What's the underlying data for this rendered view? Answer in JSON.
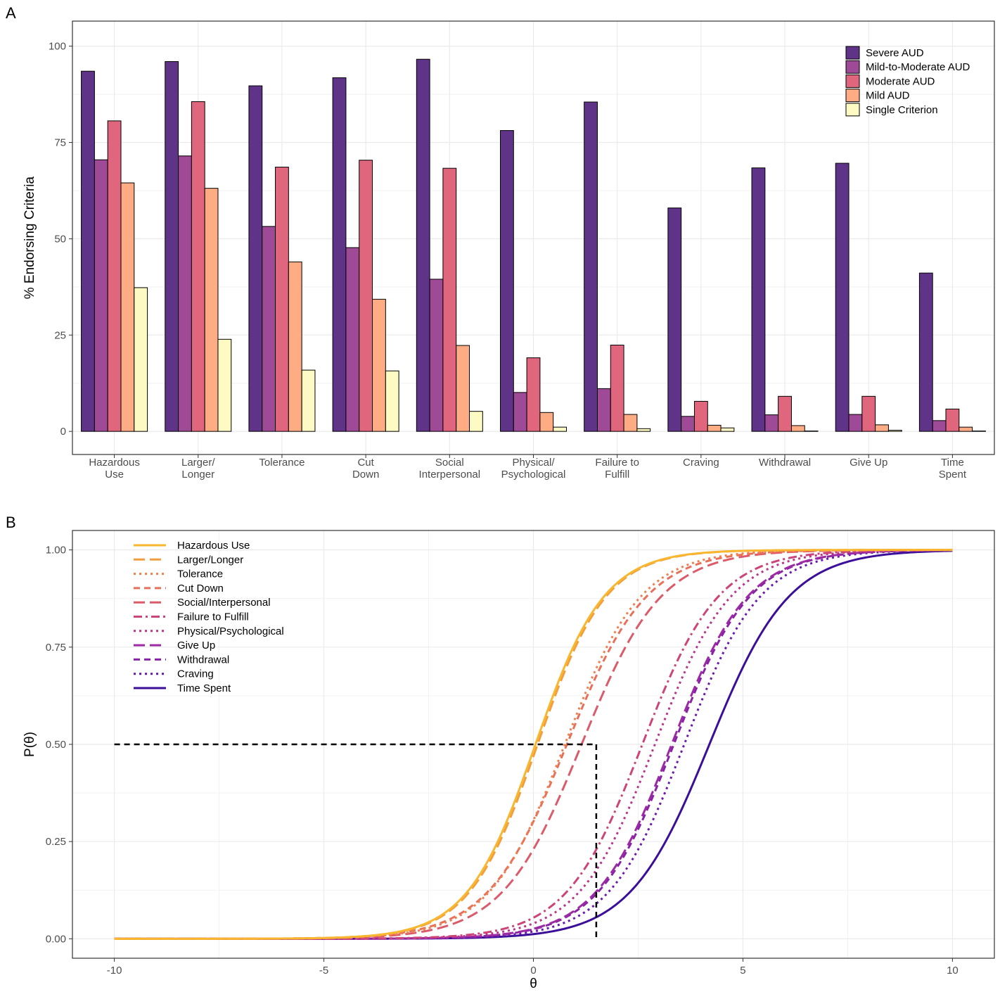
{
  "panels": {
    "a_letter": "A",
    "b_letter": "B"
  },
  "chart_data": [
    {
      "type": "bar",
      "panel": "A",
      "ylabel": "% Endorsing Criteria",
      "xlabel": "",
      "ylim": [
        0,
        100
      ],
      "yticks": [
        "0",
        "25",
        "50",
        "75",
        "100"
      ],
      "grid": true,
      "legend_position": "top-right",
      "categories": [
        [
          "Hazardous",
          "Use"
        ],
        [
          "Larger/",
          "Longer"
        ],
        [
          "Tolerance"
        ],
        [
          "Cut",
          "Down"
        ],
        [
          "Social",
          "Interpersonal"
        ],
        [
          "Physical/",
          "Psychological"
        ],
        [
          "Failure to",
          "Fulfill"
        ],
        [
          "Craving"
        ],
        [
          "Withdrawal"
        ],
        [
          "Give Up"
        ],
        [
          "Time",
          "Spent"
        ]
      ],
      "series": [
        {
          "name": "Severe AUD",
          "color": "#5f3488",
          "values": [
            93.5,
            96,
            89.7,
            91.8,
            96.6,
            78.1,
            85.5,
            58,
            68.4,
            69.6,
            41.1
          ]
        },
        {
          "name": "Mild-to-Moderate AUD",
          "color": "#9e4a96",
          "values": [
            70.5,
            71.5,
            53.2,
            47.7,
            39.5,
            10.1,
            11.1,
            3.9,
            4.3,
            4.4,
            2.8
          ]
        },
        {
          "name": "Moderate AUD",
          "color": "#e0667e",
          "values": [
            80.6,
            85.6,
            68.6,
            70.4,
            68.3,
            19.1,
            22.4,
            7.8,
            9.1,
            9.1,
            5.8
          ]
        },
        {
          "name": "Mild AUD",
          "color": "#fdac84",
          "values": [
            64.5,
            63.1,
            44,
            34.3,
            22.3,
            4.9,
            4.4,
            1.6,
            1.5,
            1.7,
            1.1
          ]
        },
        {
          "name": "Single Criterion",
          "color": "#fdfbc3",
          "values": [
            37.3,
            23.9,
            15.9,
            15.7,
            5.2,
            1.1,
            0.7,
            0.9,
            0.1,
            0.3,
            0.1
          ]
        }
      ]
    },
    {
      "type": "line",
      "panel": "B",
      "xlabel": "θ",
      "ylabel": "P(θ)",
      "xlim": [
        -10,
        10
      ],
      "ylim": [
        0,
        1
      ],
      "xticks": [
        "-10",
        "-5",
        "0",
        "5",
        "10"
      ],
      "yticks": [
        "0.00",
        "0.25",
        "0.50",
        "0.75",
        "1.00"
      ],
      "grid": true,
      "legend_position": "top-left",
      "reference_line": {
        "theta": 1.5,
        "p": 0.5
      },
      "curve_form": "logistic: P = 1/(1+exp(-a(θ-b)))",
      "series": [
        {
          "name": "Hazardous Use",
          "color": "#f9b62f",
          "dash": "solid",
          "a": 1.22,
          "b": 0.05
        },
        {
          "name": "Larger/Longer",
          "color": "#f29e3f",
          "dash": "longdash",
          "a": 1.22,
          "b": 0.1
        },
        {
          "name": "Tolerance",
          "color": "#ee8050",
          "dash": "dotted",
          "a": 1.1,
          "b": 0.75
        },
        {
          "name": "Cut Down",
          "color": "#e8705a",
          "dash": "dashed",
          "a": 1.05,
          "b": 0.8
        },
        {
          "name": "Social/Interpersonal",
          "color": "#dc5b6a",
          "dash": "longdash",
          "a": 1.05,
          "b": 1.15
        },
        {
          "name": "Failure to Fulfill",
          "color": "#cc4578",
          "dash": "twodash",
          "a": 1.1,
          "b": 2.6
        },
        {
          "name": "Physical/Psychological",
          "color": "#b8358b",
          "dash": "dotted",
          "a": 1.1,
          "b": 2.9
        },
        {
          "name": "Give Up",
          "color": "#9d2aa3",
          "dash": "longdash",
          "a": 1.1,
          "b": 3.3
        },
        {
          "name": "Withdrawal",
          "color": "#8723a6",
          "dash": "dashed",
          "a": 1.1,
          "b": 3.35
        },
        {
          "name": "Craving",
          "color": "#6a19ae",
          "dash": "dotted",
          "a": 1.1,
          "b": 3.6
        },
        {
          "name": "Time Spent",
          "color": "#3b0f99",
          "dash": "solid",
          "a": 1.05,
          "b": 4.2
        }
      ]
    }
  ]
}
